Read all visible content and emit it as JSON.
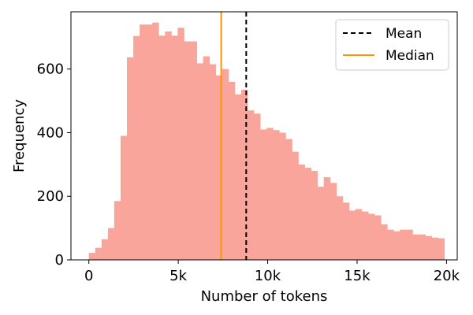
{
  "chart_data": {
    "type": "histogram",
    "xlabel": "Number of tokens",
    "ylabel": "Frequency",
    "xlim": [
      -1000,
      20600
    ],
    "ylim": [
      0,
      780
    ],
    "x_ticks": [
      {
        "value": 0,
        "label": "0"
      },
      {
        "value": 5000,
        "label": "5k"
      },
      {
        "value": 10000,
        "label": "10k"
      },
      {
        "value": 15000,
        "label": "15k"
      },
      {
        "value": 20000,
        "label": "20k"
      }
    ],
    "y_ticks": [
      {
        "value": 0,
        "label": "0"
      },
      {
        "value": 200,
        "label": "200"
      },
      {
        "value": 400,
        "label": "400"
      },
      {
        "value": 600,
        "label": "600"
      }
    ],
    "bin_start": 0,
    "bin_width": 355,
    "bar_color": "#f9a59b",
    "values": [
      22,
      38,
      65,
      100,
      185,
      390,
      637,
      704,
      740,
      740,
      746,
      705,
      718,
      705,
      730,
      687,
      687,
      618,
      640,
      615,
      580,
      600,
      560,
      520,
      535,
      470,
      460,
      410,
      415,
      408,
      400,
      380,
      340,
      300,
      290,
      280,
      230,
      260,
      242,
      200,
      180,
      155,
      160,
      152,
      145,
      140,
      112,
      95,
      90,
      95,
      95,
      80,
      80,
      75,
      70,
      68
    ],
    "mean": 8800,
    "median": 7400,
    "mean_color": "#000000",
    "median_color": "#ff9500",
    "legend": {
      "position": "top-right",
      "entries": [
        {
          "label": "Mean",
          "style": "dashed",
          "color": "#000000"
        },
        {
          "label": "Median",
          "style": "solid",
          "color": "#ff9500"
        }
      ]
    },
    "grid": false
  }
}
